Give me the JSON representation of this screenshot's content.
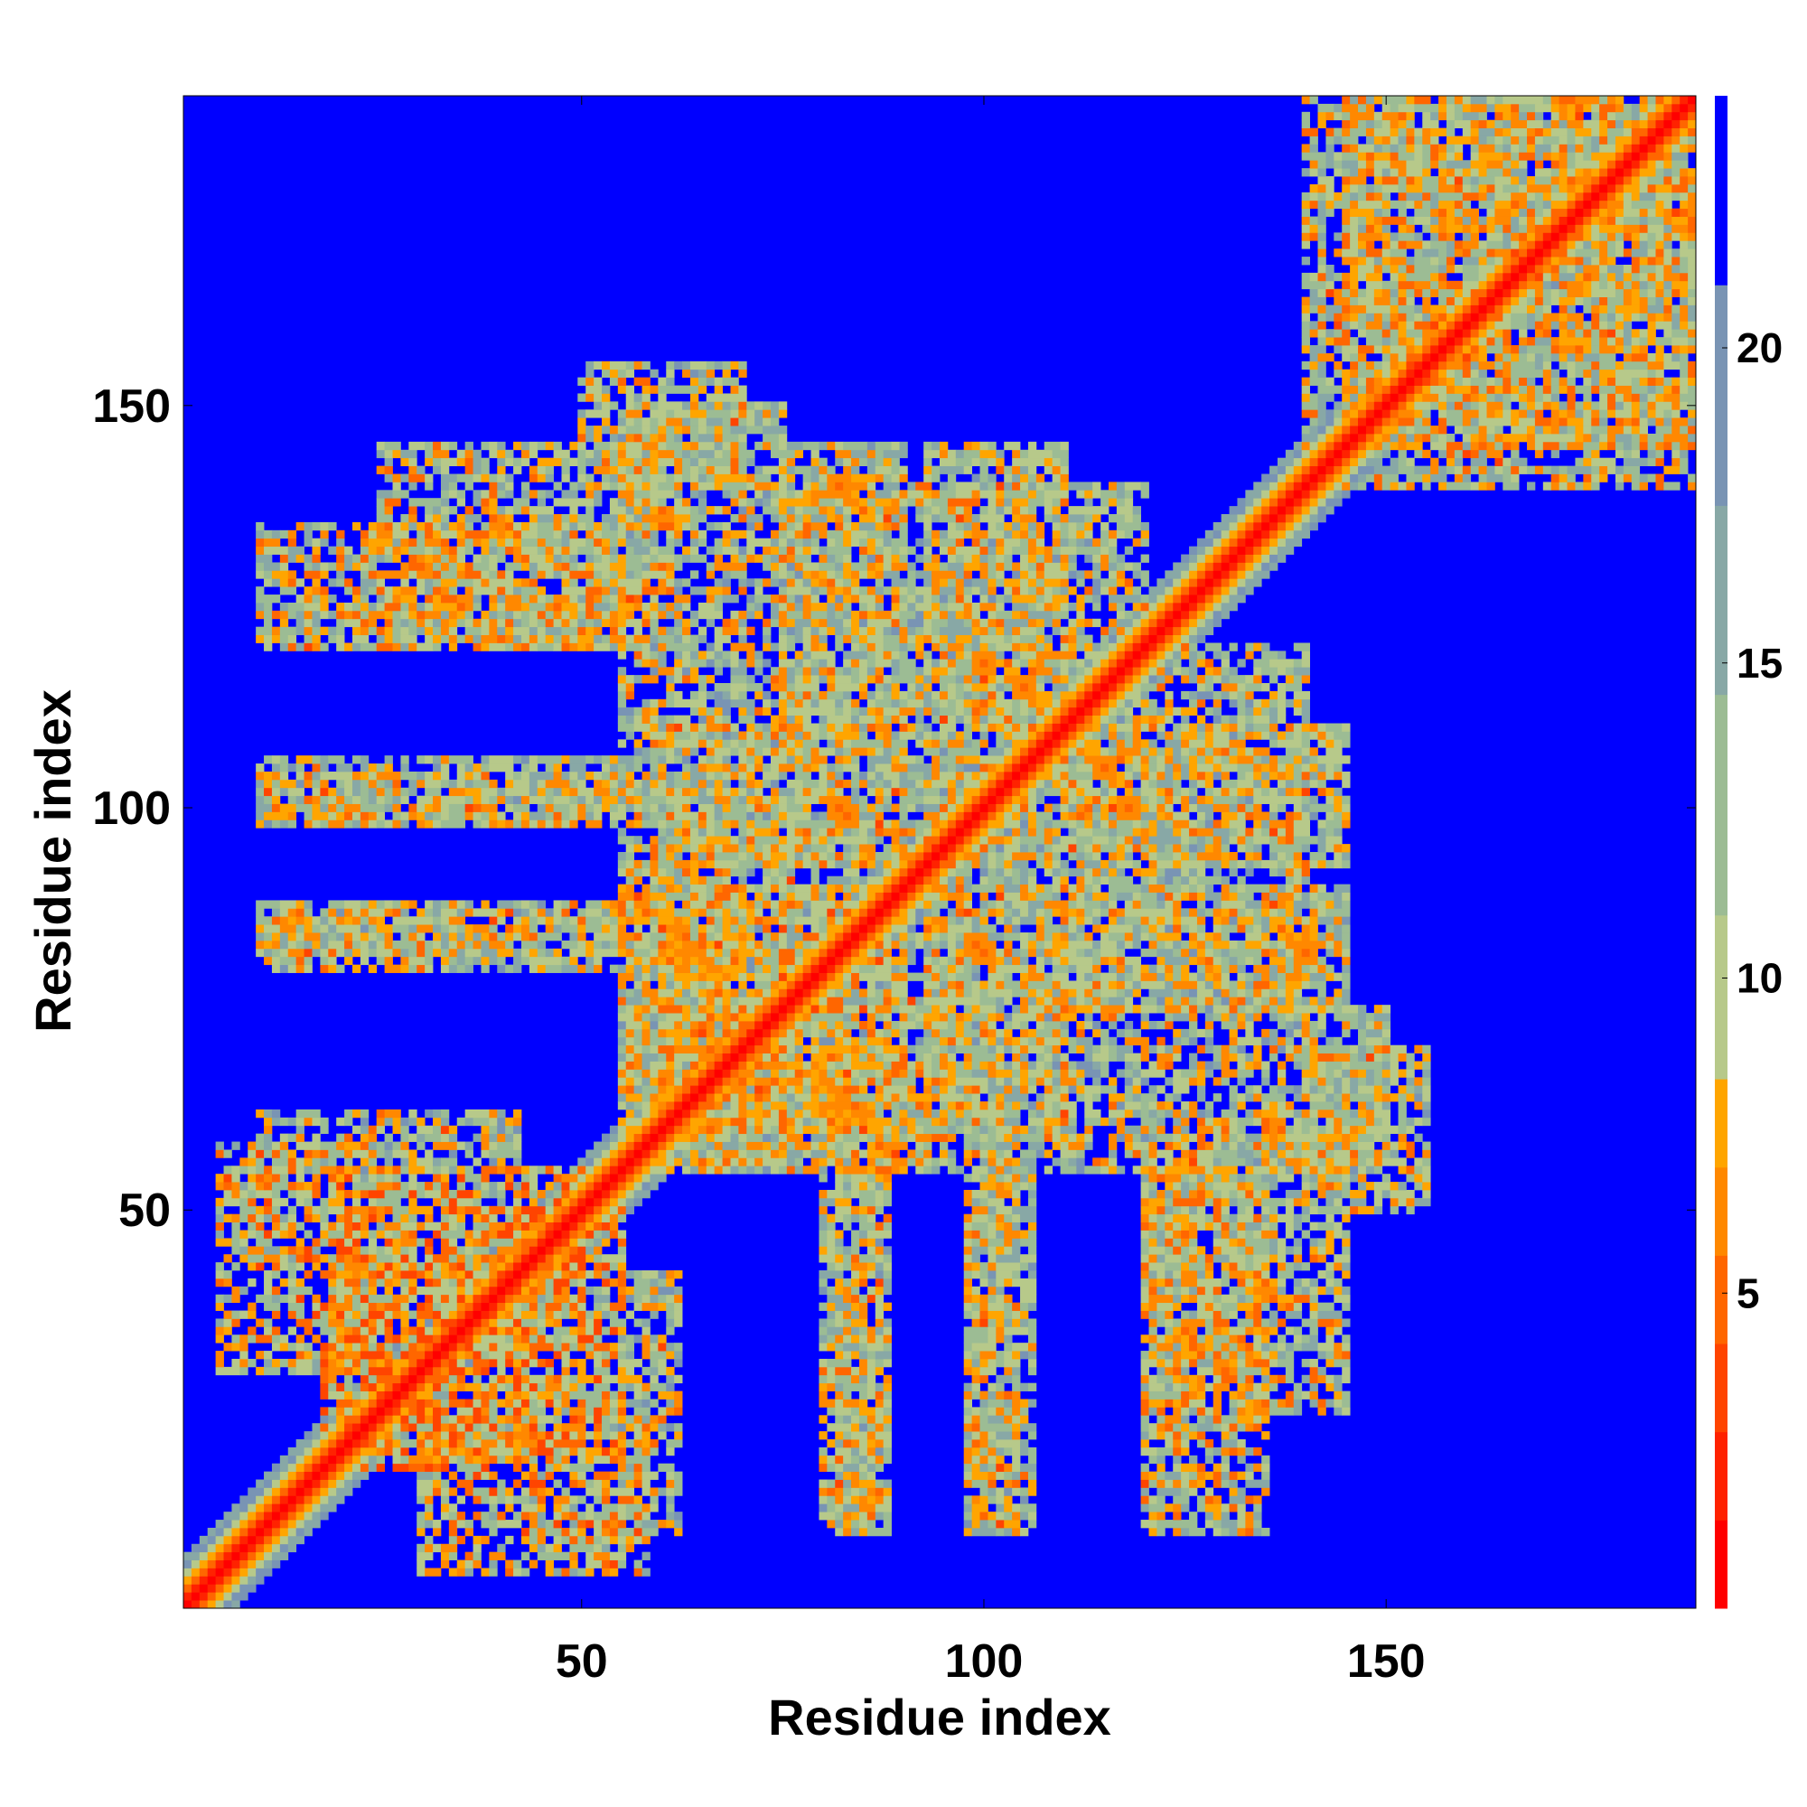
{
  "chart_data": {
    "type": "heatmap",
    "title": "",
    "xlabel": "Residue index",
    "ylabel": "Residue index",
    "n_residues": 188,
    "xlim": [
      1,
      188
    ],
    "ylim": [
      1,
      188
    ],
    "x_ticks": [
      50,
      100,
      150
    ],
    "y_ticks": [
      50,
      100,
      150
    ],
    "colorbar": {
      "ticks": [
        5,
        10,
        15,
        20
      ],
      "range": [
        0,
        24
      ],
      "levels": [
        {
          "max": 1.4,
          "color": "#ff0000"
        },
        {
          "max": 2.8,
          "color": "#ff2200"
        },
        {
          "max": 4.2,
          "color": "#ff4400"
        },
        {
          "max": 5.6,
          "color": "#ff6600"
        },
        {
          "max": 7.0,
          "color": "#ff8800"
        },
        {
          "max": 8.4,
          "color": "#ffa500"
        },
        {
          "max": 11.0,
          "color": "#b7c98a"
        },
        {
          "max": 14.5,
          "color": "#9cbc94"
        },
        {
          "max": 17.5,
          "color": "#88a8a6"
        },
        {
          "max": 21.0,
          "color": "#7994b4"
        },
        {
          "max": 24.0,
          "color": "#0000ff"
        }
      ]
    },
    "contact_bands": [
      {
        "x": [
          1,
          188
        ],
        "y": [
          1,
          188
        ],
        "kind": "diagonal",
        "min_value": 0.5
      },
      {
        "x": [
          18,
          55
        ],
        "y": [
          20,
          50
        ],
        "value": 9
      },
      {
        "x": [
          30,
          58
        ],
        "y": [
          5,
          22
        ],
        "value": 10
      },
      {
        "x": [
          55,
          62
        ],
        "y": [
          10,
          42
        ],
        "value": 12
      },
      {
        "x": [
          80,
          87
        ],
        "y": [
          10,
          55
        ],
        "value": 12
      },
      {
        "x": [
          98,
          106
        ],
        "y": [
          10,
          55
        ],
        "value": 12
      },
      {
        "x": [
          120,
          135
        ],
        "y": [
          10,
          55
        ],
        "value": 11
      },
      {
        "x": [
          140,
          155
        ],
        "y": [
          50,
          70
        ],
        "value": 12
      },
      {
        "x": [
          60,
          95
        ],
        "y": [
          55,
          70
        ],
        "value": 11
      },
      {
        "x": [
          10,
          60
        ],
        "y": [
          82,
          88
        ],
        "value": 12
      },
      {
        "x": [
          10,
          60
        ],
        "y": [
          98,
          104
        ],
        "value": 12
      },
      {
        "x": [
          25,
          60
        ],
        "y": [
          120,
          145
        ],
        "value": 11
      },
      {
        "x": [
          55,
          75
        ],
        "y": [
          60,
          150
        ],
        "value": 12
      },
      {
        "x": [
          75,
          90
        ],
        "y": [
          60,
          145
        ],
        "value": 12
      },
      {
        "x": [
          93,
          110
        ],
        "y": [
          60,
          145
        ],
        "value": 12
      },
      {
        "x": [
          110,
          140
        ],
        "y": [
          75,
          120
        ],
        "value": 12
      },
      {
        "x": [
          145,
          188
        ],
        "y": [
          140,
          188
        ],
        "value": 11
      }
    ],
    "point_contacts": [
      {
        "x": 83,
        "y": 99,
        "value": 5
      },
      {
        "x": 105,
        "y": 115,
        "value": 5
      },
      {
        "x": 118,
        "y": 100,
        "value": 5
      },
      {
        "x": 100,
        "y": 82,
        "value": 5
      },
      {
        "x": 140,
        "y": 82,
        "value": 5
      },
      {
        "x": 82,
        "y": 63,
        "value": 6
      },
      {
        "x": 136,
        "y": 60,
        "value": 6
      },
      {
        "x": 62,
        "y": 85,
        "value": 6
      },
      {
        "x": 165,
        "y": 165,
        "value": 6
      },
      {
        "x": 175,
        "y": 178,
        "value": 6
      },
      {
        "x": 40,
        "y": 135,
        "value": 6
      }
    ]
  }
}
